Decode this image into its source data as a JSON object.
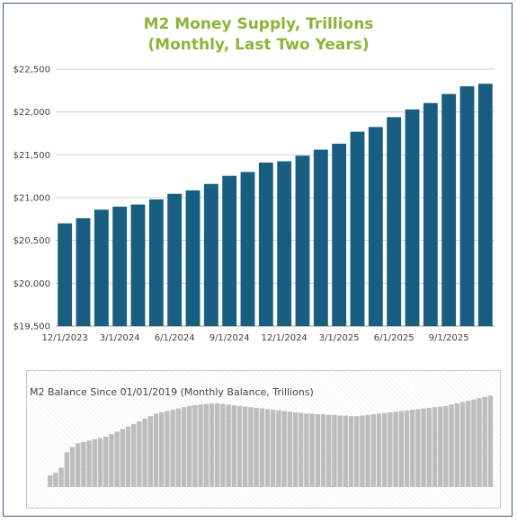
{
  "chart_data": [
    {
      "type": "bar",
      "title_line1": "M2 Money Supply, Trillions",
      "title_line2": "(Monthly, Last Two Years)",
      "ylim": [
        19500,
        22500
      ],
      "yticks": [
        {
          "value": 19500,
          "label": "$19,500"
        },
        {
          "value": 20000,
          "label": "$20,000"
        },
        {
          "value": 20500,
          "label": "$20,500"
        },
        {
          "value": 21000,
          "label": "$21,000"
        },
        {
          "value": 21500,
          "label": "$21,500"
        },
        {
          "value": 22000,
          "label": "$22,000"
        },
        {
          "value": 22500,
          "label": "$22,500"
        }
      ],
      "xtick_labels": [
        {
          "index": 0,
          "label": "12/1/2023"
        },
        {
          "index": 3,
          "label": "3/1/2024"
        },
        {
          "index": 6,
          "label": "6/1/2024"
        },
        {
          "index": 9,
          "label": "9/1/2024"
        },
        {
          "index": 12,
          "label": "12/1/2024"
        },
        {
          "index": 15,
          "label": "3/1/2025"
        },
        {
          "index": 18,
          "label": "6/1/2025"
        },
        {
          "index": 21,
          "label": "9/1/2025"
        }
      ],
      "values": [
        20700,
        20760,
        20860,
        20895,
        20920,
        20980,
        21045,
        21085,
        21160,
        21255,
        21300,
        21410,
        21425,
        21490,
        21560,
        21630,
        21770,
        21825,
        21940,
        22030,
        22105,
        22210,
        22300,
        22330
      ],
      "bar_color": "#175e81",
      "grid": true
    },
    {
      "type": "bar",
      "title": "M2 Balance Since 01/01/2019 (Monthly Balance, Trillions)",
      "values": [
        15.4,
        15.6,
        16.0,
        17.2,
        17.6,
        17.9,
        18.0,
        18.1,
        18.2,
        18.3,
        18.4,
        18.6,
        18.8,
        19.0,
        19.2,
        19.4,
        19.6,
        19.8,
        20.0,
        20.2,
        20.3,
        20.4,
        20.5,
        20.6,
        20.7,
        20.8,
        20.85,
        20.9,
        20.95,
        21.0,
        21.0,
        20.95,
        20.9,
        20.85,
        20.8,
        20.75,
        20.7,
        20.65,
        20.6,
        20.55,
        20.5,
        20.45,
        20.4,
        20.35,
        20.3,
        20.25,
        20.2,
        20.2,
        20.15,
        20.15,
        20.1,
        20.1,
        20.05,
        20.05,
        20.0,
        20.0,
        20.05,
        20.1,
        20.15,
        20.2,
        20.25,
        20.3,
        20.35,
        20.4,
        20.45,
        20.5,
        20.55,
        20.6,
        20.65,
        20.7,
        20.75,
        20.8,
        20.9,
        21.0,
        21.1,
        21.2,
        21.3,
        21.4,
        21.5,
        21.6
      ],
      "ylim": [
        14.5,
        21.9
      ],
      "bar_color": "#bdbdbd"
    }
  ]
}
